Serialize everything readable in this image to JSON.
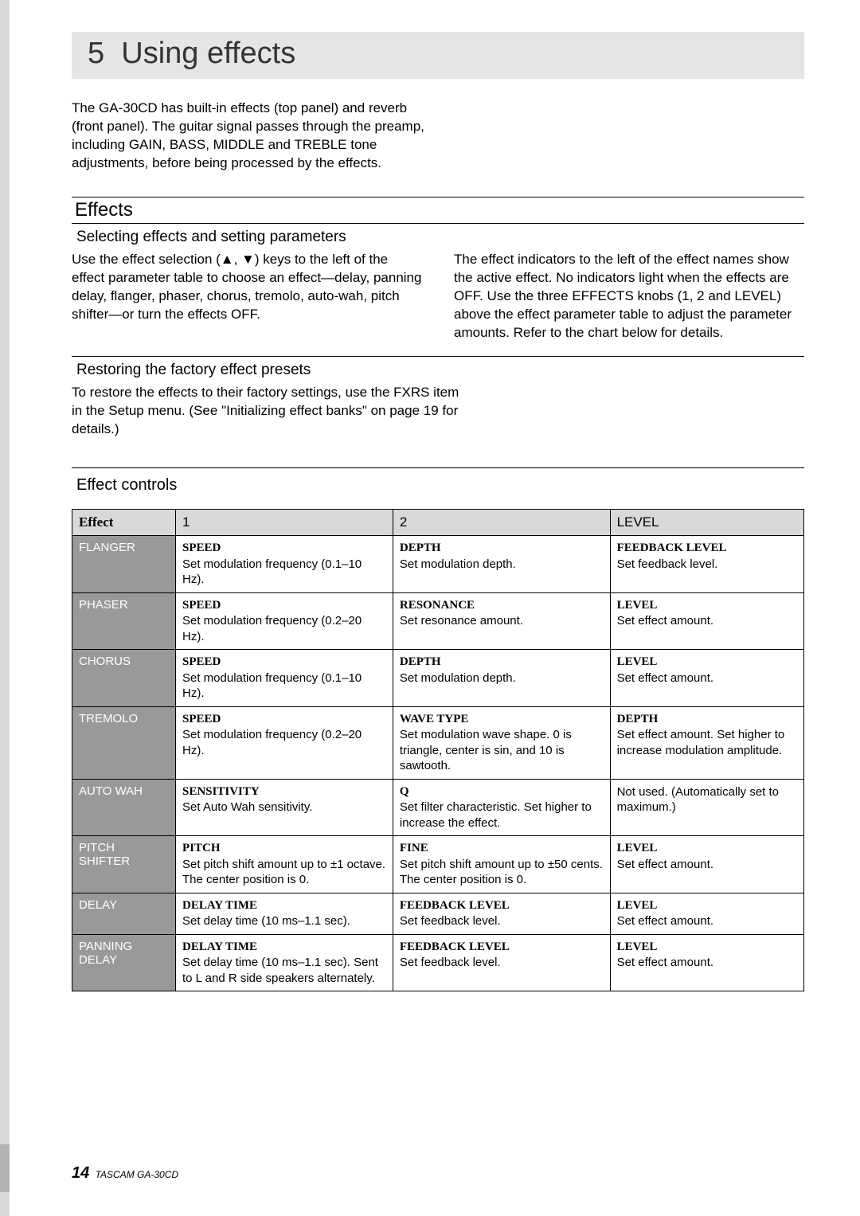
{
  "chapter": {
    "number": "5",
    "title": "Using effects"
  },
  "intro": "The GA-30CD has built-in effects (top panel) and reverb (front panel). The guitar signal passes through the preamp, including GAIN, BASS, MIDDLE and TREBLE tone adjustments, before being processed by the effects.",
  "effects": {
    "heading": "Effects",
    "selecting": {
      "title": "Selecting effects and setting parameters",
      "left": "Use the effect selection (▲, ▼) keys to the left of the effect parameter table to choose an effect—delay, panning delay, flanger, phaser, chorus, tremolo, auto-wah, pitch shifter—or turn the effects OFF.",
      "right": "The effect indicators to the left of the effect names show the active effect. No indicators light when the effects are OFF. Use the three EFFECTS knobs (1, 2 and LEVEL) above the effect parameter table to adjust the parameter amounts. Refer to the chart below for details."
    },
    "restoring": {
      "title": "Restoring the factory effect presets",
      "body": "To restore the effects to their factory settings, use the FXRS item in the Setup menu. (See \"Initializing effect banks\" on page 19 for details.)"
    }
  },
  "table": {
    "title": "Effect controls",
    "headers": {
      "effect": "Effect",
      "c1": "1",
      "c2": "2",
      "level": "LEVEL"
    },
    "rows": [
      {
        "name": "FLANGER",
        "c1": {
          "t": "SPEED",
          "d": "Set modulation frequency (0.1–10 Hz)."
        },
        "c2": {
          "t": "DEPTH",
          "d": "Set modulation depth."
        },
        "lv": {
          "t": "FEEDBACK LEVEL",
          "d": "Set feedback level."
        }
      },
      {
        "name": "PHASER",
        "c1": {
          "t": "SPEED",
          "d": "Set modulation frequency (0.2–20 Hz)."
        },
        "c2": {
          "t": "RESONANCE",
          "d": "Set resonance amount."
        },
        "lv": {
          "t": "LEVEL",
          "d": "Set effect amount."
        }
      },
      {
        "name": "CHORUS",
        "c1": {
          "t": "SPEED",
          "d": "Set modulation frequency (0.1–10 Hz)."
        },
        "c2": {
          "t": "DEPTH",
          "d": "Set modulation depth."
        },
        "lv": {
          "t": "LEVEL",
          "d": "Set effect amount."
        }
      },
      {
        "name": "TREMOLO",
        "c1": {
          "t": "SPEED",
          "d": "Set modulation frequency (0.2–20 Hz)."
        },
        "c2": {
          "t": "WAVE TYPE",
          "d": "Set modulation wave shape. 0 is triangle, center is sin, and 10 is sawtooth."
        },
        "lv": {
          "t": "DEPTH",
          "d": "Set effect amount. Set higher to increase modulation amplitude."
        }
      },
      {
        "name": "AUTO WAH",
        "c1": {
          "t": "SENSITIVITY",
          "d": "Set Auto Wah sensitivity."
        },
        "c2": {
          "t": "Q",
          "d": "Set filter characteristic. Set higher to increase the effect."
        },
        "lv": {
          "t": "",
          "d": "Not used. (Automatically set to maximum.)"
        }
      },
      {
        "name": "PITCH SHIFTER",
        "c1": {
          "t": "PITCH",
          "d": "Set pitch shift amount up to ±1 octave. The center position is 0."
        },
        "c2": {
          "t": "FINE",
          "d": "Set pitch shift amount up to ±50 cents. The center position is 0."
        },
        "lv": {
          "t": "LEVEL",
          "d": "Set effect amount."
        }
      },
      {
        "name": "DELAY",
        "c1": {
          "t": "DELAY TIME",
          "d": "Set delay time (10 ms–1.1 sec)."
        },
        "c2": {
          "t": "FEEDBACK LEVEL",
          "d": "Set feedback level."
        },
        "lv": {
          "t": "LEVEL",
          "d": "Set effect amount."
        }
      },
      {
        "name": "PANNING DELAY",
        "c1": {
          "t": "DELAY TIME",
          "d": "Set delay time (10 ms–1.1 sec). Sent to L and R side speakers alternately."
        },
        "c2": {
          "t": "FEEDBACK LEVEL",
          "d": "Set feedback level."
        },
        "lv": {
          "t": "LEVEL",
          "d": "Set effect amount."
        }
      }
    ]
  },
  "footer": {
    "page": "14",
    "model": "TASCAM GA-30CD"
  },
  "colors": {
    "page_bg": "#ffffff",
    "header_bg": "#e5e5e5",
    "table_header_bg": "#d9d9d9",
    "effect_name_bg": "#999999",
    "effect_name_fg": "#ffffff",
    "left_bar": "#d9d9d9"
  }
}
